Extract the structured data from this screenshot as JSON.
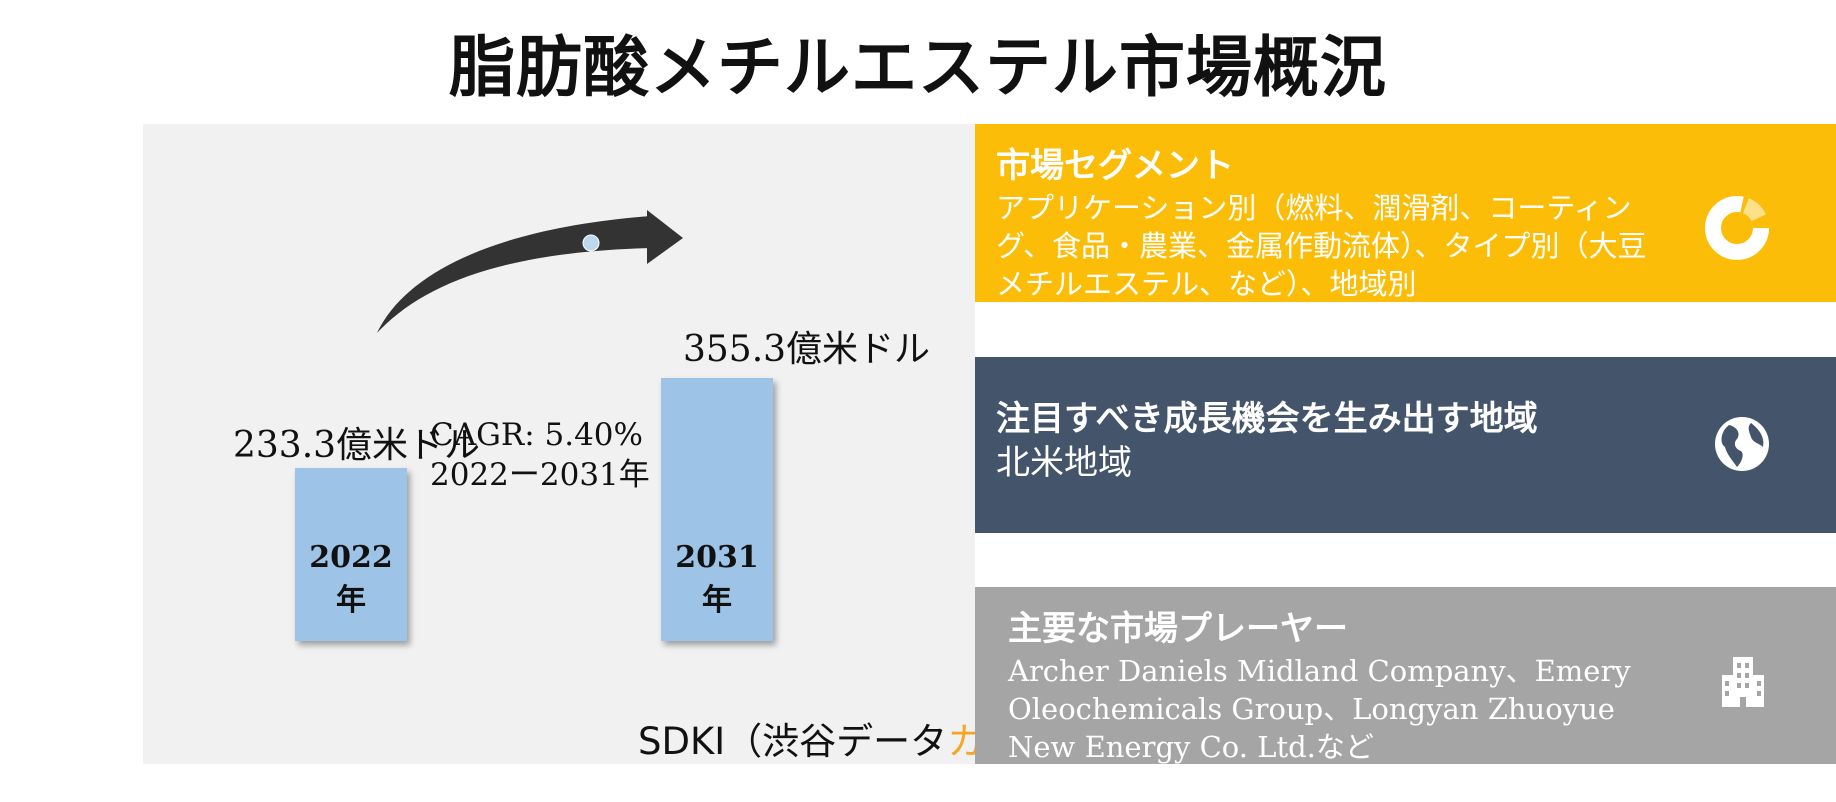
{
  "title": "脂肪酸メチルエステル市場概況",
  "chart_data": {
    "type": "bar",
    "categories": [
      "2022年",
      "2031年"
    ],
    "values": [
      233.3,
      355.3
    ],
    "value_labels": [
      "233.3億米ドル",
      "355.3億米ドル"
    ],
    "unit": "億米ドル",
    "annotation": {
      "cagr": "CAGR: 5.40%",
      "period": "2022ー2031年"
    },
    "bar_color": "#9dc3e6",
    "grid": false
  },
  "brand": {
    "prefix": "SDKI（渋谷データ",
    "accent": "カウント",
    "suffix": "）",
    "accent_color": "#f5a623"
  },
  "segments": {
    "heading": "市場セグメント",
    "body": "アプリケーション別（燃料、潤滑剤、コーティング、食品・農業、金属作動流体）、タイプ別（大豆メチルエステル、など）、地域別",
    "color": "#fbbd08",
    "icon": "donut-chart-icon"
  },
  "regions": {
    "heading": "注目すべき成長機会を生み出す地域",
    "body": "北米地域",
    "color": "#44546a",
    "icon": "globe-icon"
  },
  "players": {
    "heading": "主要な市場プレーヤー",
    "body": "Archer Daniels Midland Company、Emery Oleochemicals Group、Longyan Zhuoyue New Energy Co. Ltd.など",
    "color": "#a5a5a5",
    "icon": "building-icon"
  }
}
